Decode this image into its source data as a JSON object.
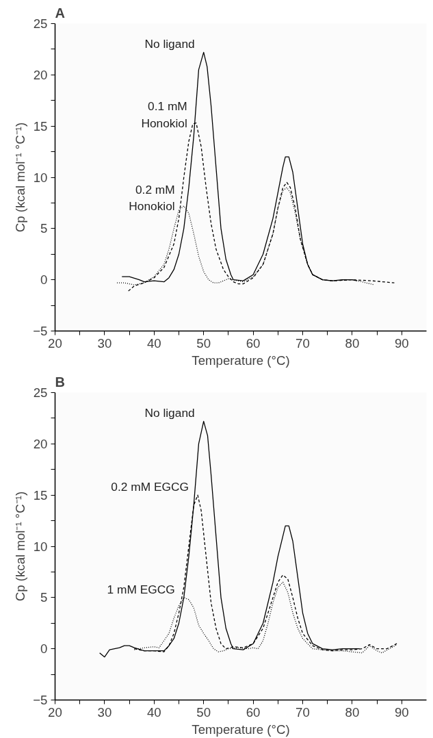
{
  "chart_data": [
    {
      "type": "line",
      "title": "A",
      "xlabel": "Temperature (°C)",
      "ylabel": "Cp (kcal mol⁻¹ °C⁻¹)",
      "xlim": [
        20,
        95
      ],
      "ylim": [
        -5,
        25
      ],
      "grid": false,
      "marker": "none",
      "xticks": [
        20,
        {
          "value": 25,
          "label": null
        },
        30,
        {
          "value": 35,
          "label": null
        },
        40,
        {
          "value": 45,
          "label": null
        },
        50,
        {
          "value": 55,
          "label": null
        },
        60,
        {
          "value": 65,
          "label": null
        },
        70,
        {
          "value": 75,
          "label": null
        },
        80,
        {
          "value": 85,
          "label": null
        },
        90
      ],
      "yticks": [
        -5,
        {
          "value": -2.5,
          "label": null
        },
        0,
        {
          "value": 2.5,
          "label": null
        },
        5,
        {
          "value": 7.5,
          "label": null
        },
        10,
        {
          "value": 12.5,
          "label": null
        },
        15,
        {
          "value": 17.5,
          "label": null
        },
        20,
        {
          "value": 22.5,
          "label": null
        },
        25
      ],
      "series": [
        {
          "name": "No ligand",
          "color": "#000000",
          "line_style": "solid",
          "x": [
            33.5,
            35,
            37,
            38,
            40,
            42,
            43,
            44,
            45,
            46,
            47,
            48,
            49,
            50,
            50.7,
            51.5,
            52.5,
            53.5,
            54.5,
            55.5,
            56,
            58,
            60,
            62,
            64,
            65,
            66,
            66.5,
            67.2,
            68,
            69,
            70,
            71,
            72,
            74,
            76,
            78,
            80,
            81
          ],
          "values": [
            0.3,
            0.3,
            0,
            -0.2,
            -0.1,
            -0.2,
            0.2,
            1,
            2.5,
            5,
            9,
            14,
            20.5,
            22.2,
            20.8,
            17,
            11,
            5,
            2,
            0.5,
            0,
            -0.1,
            0.5,
            2.5,
            6,
            8.5,
            11,
            12,
            12,
            10.5,
            7,
            3.5,
            1.5,
            0.5,
            0,
            -0.1,
            0,
            0,
            -0.1
          ]
        },
        {
          "name": "0.1 mM\nHonokiol",
          "color": "#000000",
          "line_style": "dashed",
          "x": [
            34.8,
            36,
            38,
            40,
            42,
            44,
            45,
            46,
            47,
            47.8,
            48.5,
            49.5,
            50.5,
            51.5,
            52.5,
            54,
            55,
            56,
            57,
            58,
            60,
            62,
            64,
            65,
            66,
            66.8,
            67.5,
            68.5,
            69.5,
            71,
            72,
            74,
            76,
            80,
            84,
            88.5
          ],
          "values": [
            -1.1,
            -0.6,
            -0.3,
            0.2,
            1.2,
            3.5,
            6,
            10,
            13.5,
            15.2,
            15.3,
            13,
            9,
            5.5,
            3,
            1,
            0.3,
            -0.2,
            -0.4,
            -0.4,
            0.2,
            1.5,
            4.5,
            7,
            9,
            9.5,
            9,
            7,
            4,
            1.5,
            0.5,
            0,
            -0.1,
            0,
            -0.1,
            -0.3
          ]
        },
        {
          "name": "0.2 mM\nHonokiol",
          "color": "#000000",
          "line_style": "dotted",
          "x": [
            32.5,
            34,
            36,
            38,
            40,
            42,
            43,
            44,
            45,
            46,
            47,
            48,
            49,
            50,
            51,
            52,
            53,
            54,
            55,
            56,
            58,
            60,
            62,
            64,
            65,
            66,
            66.8,
            67.5,
            68.5,
            69.5,
            71,
            72,
            74,
            76,
            80,
            82,
            84.5
          ],
          "values": [
            -0.3,
            -0.3,
            -0.5,
            -0.3,
            0.3,
            1.5,
            3,
            5,
            6.8,
            7.2,
            6.5,
            4.5,
            2.3,
            0.8,
            0,
            -0.3,
            -0.3,
            -0.1,
            0.1,
            0,
            -0.2,
            0.3,
            1.5,
            4.5,
            7,
            8.7,
            9,
            8.5,
            6.5,
            4,
            1.5,
            0.5,
            0,
            -0.1,
            0,
            -0.2,
            -0.5
          ]
        }
      ]
    },
    {
      "type": "line",
      "title": "B",
      "xlabel": "Temperature (°C)",
      "ylabel": "Cp (kcal mol⁻¹ °C⁻¹)",
      "xlim": [
        20,
        95
      ],
      "ylim": [
        -5,
        25
      ],
      "grid": false,
      "marker": "none",
      "xticks": [
        20,
        {
          "value": 25,
          "label": null
        },
        30,
        {
          "value": 35,
          "label": null
        },
        40,
        {
          "value": 45,
          "label": null
        },
        50,
        {
          "value": 55,
          "label": null
        },
        60,
        {
          "value": 65,
          "label": null
        },
        70,
        {
          "value": 75,
          "label": null
        },
        80,
        {
          "value": 85,
          "label": null
        },
        90
      ],
      "yticks": [
        -5,
        {
          "value": -2.5,
          "label": null
        },
        0,
        {
          "value": 2.5,
          "label": null
        },
        5,
        {
          "value": 7.5,
          "label": null
        },
        10,
        {
          "value": 12.5,
          "label": null
        },
        15,
        {
          "value": 17.5,
          "label": null
        },
        20,
        {
          "value": 22.5,
          "label": null
        },
        25
      ],
      "series": [
        {
          "name": "No ligand",
          "color": "#000000",
          "line_style": "solid",
          "x": [
            29,
            30,
            31,
            32,
            33,
            34,
            35,
            36,
            38,
            40,
            42,
            43,
            44,
            45,
            46,
            47,
            48,
            49,
            50,
            50.8,
            51.5,
            52.5,
            53.5,
            54.5,
            55.5,
            56,
            58,
            60,
            62,
            64,
            65,
            66,
            66.5,
            67.2,
            68,
            69,
            70,
            71,
            72,
            74,
            76,
            78,
            80,
            81.5
          ],
          "values": [
            -0.4,
            -0.8,
            -0.1,
            0,
            0.1,
            0.3,
            0.3,
            0.1,
            -0.2,
            -0.2,
            -0.2,
            0.3,
            1,
            2.5,
            5,
            9,
            14,
            20,
            22.2,
            20.8,
            17,
            11,
            5,
            2,
            0.5,
            0,
            -0.1,
            0.5,
            2.5,
            6.5,
            9,
            11,
            12,
            12,
            10.5,
            7,
            3.5,
            1.5,
            0.5,
            0,
            -0.1,
            0,
            0,
            0
          ]
        },
        {
          "name": "0.2 mM EGCG",
          "color": "#000000",
          "line_style": "dashed",
          "x": [
            36,
            38,
            40,
            42,
            43,
            44,
            45,
            46,
            47,
            48,
            48.8,
            49.5,
            50.5,
            51.5,
            52.5,
            53.5,
            54.5,
            56,
            58,
            60,
            62,
            64,
            65,
            66,
            67,
            68,
            69,
            70,
            72,
            74,
            76,
            78,
            80,
            82,
            83.5,
            85,
            87,
            89
          ],
          "values": [
            0,
            -0.2,
            -0.2,
            -0.3,
            0.3,
            1.5,
            3.5,
            6,
            10,
            14,
            15,
            13.5,
            9,
            4.5,
            2,
            0.5,
            0,
            0.2,
            0.1,
            0.5,
            2,
            5,
            6.5,
            7.2,
            6.8,
            5,
            3,
            1.5,
            0.3,
            -0.1,
            -0.2,
            -0.1,
            -0.1,
            0,
            0.4,
            0,
            0,
            0.5
          ]
        },
        {
          "name": "1 mM EGCG",
          "color": "#000000",
          "line_style": "dotted",
          "x": [
            36,
            38,
            40,
            41,
            42,
            43,
            44,
            45,
            46,
            47,
            48,
            49,
            50,
            51,
            52,
            53,
            54,
            55,
            57,
            59,
            60,
            61,
            62,
            63,
            64,
            65,
            66,
            67,
            68,
            69,
            70,
            72,
            74,
            76,
            78,
            80,
            82,
            83.5,
            85,
            86,
            87.5,
            89
          ],
          "values": [
            -0.1,
            0.1,
            0.2,
            0.1,
            0.8,
            1.5,
            3,
            4.2,
            5,
            4.8,
            4,
            2.3,
            1.5,
            0.8,
            0,
            -0.3,
            -0.2,
            0,
            0.1,
            0,
            0.1,
            0,
            0.8,
            2.5,
            4.5,
            6,
            6.5,
            5.5,
            3.5,
            2,
            1,
            0,
            -0.1,
            -0.2,
            -0.2,
            -0.3,
            -0.4,
            0.3,
            -0.2,
            -0.4,
            0,
            0.4
          ]
        }
      ]
    }
  ]
}
